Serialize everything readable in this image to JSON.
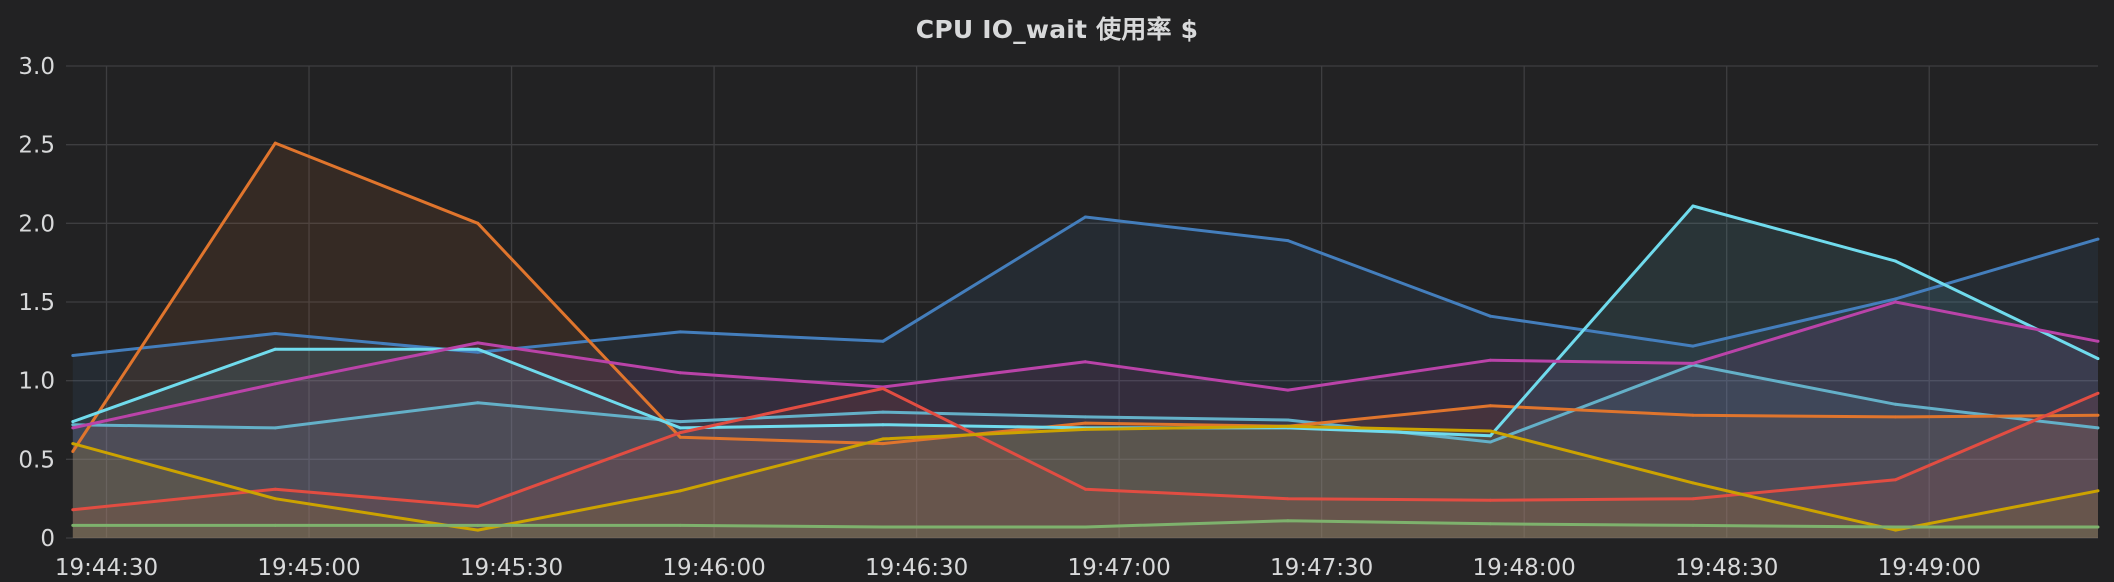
{
  "panel": {
    "title": "CPU IO_wait 使用率 $"
  },
  "chart_data": {
    "type": "area",
    "title": "CPU IO_wait 使用率 $",
    "xlabel": "",
    "ylabel": "",
    "grid": true,
    "legend": "none",
    "x": [
      "19:44:25",
      "19:44:55",
      "19:45:25",
      "19:45:55",
      "19:46:25",
      "19:46:55",
      "19:47:25",
      "19:47:55",
      "19:48:25",
      "19:48:55",
      "19:49:25"
    ],
    "xlim": [
      "19:44:24",
      "19:49:25"
    ],
    "xticks": [
      "19:44:30",
      "19:45:00",
      "19:45:30",
      "19:46:00",
      "19:46:30",
      "19:47:00",
      "19:47:30",
      "19:48:00",
      "19:48:30",
      "19:49:00"
    ],
    "ylim": [
      0,
      3.0
    ],
    "yticks": [
      "0",
      "0.5",
      "1.0",
      "1.5",
      "2.0",
      "2.5",
      "3.0"
    ],
    "series": [
      {
        "color": "#447ebc",
        "values": [
          1.16,
          1.3,
          1.18,
          1.31,
          1.25,
          2.04,
          1.89,
          1.41,
          1.22,
          1.52,
          1.9
        ]
      },
      {
        "color": "#64b0c8",
        "values": [
          0.72,
          0.7,
          0.86,
          0.74,
          0.8,
          0.77,
          0.75,
          0.61,
          1.1,
          0.85,
          0.7
        ]
      },
      {
        "color": "#e0752d",
        "values": [
          0.55,
          2.51,
          2.0,
          0.64,
          0.6,
          0.73,
          0.71,
          0.84,
          0.78,
          0.77,
          0.78
        ]
      },
      {
        "color": "#70dbed",
        "values": [
          0.74,
          1.2,
          1.2,
          0.7,
          0.72,
          0.7,
          0.7,
          0.65,
          2.11,
          1.76,
          1.14
        ]
      },
      {
        "color": "#ba43a9",
        "values": [
          0.7,
          0.98,
          1.24,
          1.05,
          0.96,
          1.12,
          0.94,
          1.13,
          1.11,
          1.5,
          1.25
        ]
      },
      {
        "color": "#e24d42",
        "values": [
          0.18,
          0.31,
          0.2,
          0.67,
          0.95,
          0.31,
          0.25,
          0.24,
          0.25,
          0.37,
          0.92
        ]
      },
      {
        "color": "#cca300",
        "values": [
          0.6,
          0.25,
          0.05,
          0.3,
          0.63,
          0.69,
          0.71,
          0.68,
          0.35,
          0.05,
          0.3
        ]
      },
      {
        "color": "#7eb26d",
        "values": [
          0.08,
          0.08,
          0.08,
          0.08,
          0.07,
          0.07,
          0.11,
          0.09,
          0.08,
          0.07,
          0.07
        ]
      }
    ]
  }
}
